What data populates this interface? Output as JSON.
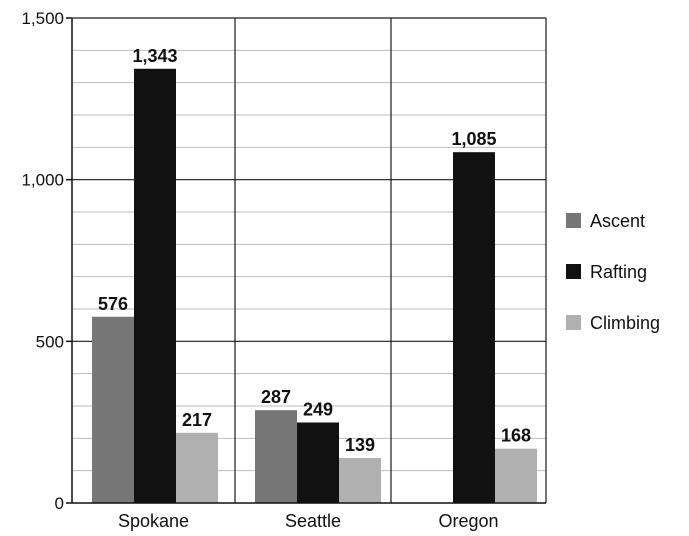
{
  "chart_data": {
    "type": "bar",
    "categories": [
      "Spokane",
      "Seattle",
      "Oregon"
    ],
    "series": [
      {
        "name": "Ascent",
        "values": [
          576,
          287,
          null
        ]
      },
      {
        "name": "Rafting",
        "values": [
          1343,
          249,
          1085
        ]
      },
      {
        "name": "Climbing",
        "values": [
          217,
          139,
          168
        ]
      }
    ],
    "data_labels": [
      [
        "576",
        "287",
        ""
      ],
      [
        "1,343",
        "249",
        "1,085"
      ],
      [
        "217",
        "139",
        "168"
      ]
    ],
    "y_ticks": [
      0,
      500,
      1000,
      1500
    ],
    "y_tick_labels": [
      "0",
      "500",
      "1,000",
      "1,500"
    ],
    "ylim": [
      0,
      1500
    ],
    "minor_gridline_step": 100,
    "grid": true,
    "legend_position": "right",
    "title": "",
    "xlabel": "",
    "ylabel": "",
    "colors": {
      "Ascent": "#777777",
      "Rafting": "#111111",
      "Climbing": "#b0b0b0",
      "major_grid": "#1a1a1a",
      "minor_grid": "#bdbdbd",
      "text": "#111111"
    }
  }
}
